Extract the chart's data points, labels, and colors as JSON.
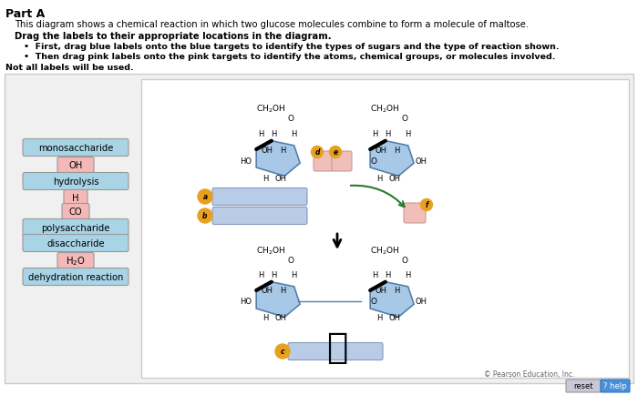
{
  "title_part": "Part A",
  "description": "This diagram shows a chemical reaction in which two glucose molecules combine to form a molecule of maltose.",
  "instruction_bold": "Drag the labels to their appropriate locations in the diagram.",
  "bullet1": "First, drag blue labels onto the blue targets to identify the types of sugars and the type of reaction shown.",
  "bullet2": "Then drag pink labels onto the pink targets to identify the atoms, chemical groups, or molecules involved.",
  "not_all": "Not all labels will be used.",
  "blue_labels": [
    "monosaccharide",
    "hydrolysis",
    "polysaccharide",
    "disaccharide",
    "dehydration reaction"
  ],
  "pink_labels": [
    "OH",
    "H",
    "CO",
    "H₂O"
  ],
  "label_blue_color": "#a8d4e6",
  "label_pink_color": "#f5b8b8",
  "target_blue_color": "#b8cce8",
  "target_pink_color": "#f0c0b8",
  "circle_color": "#e8a020",
  "arrow_color": "#2a7a2a",
  "hex_face": "#a8c8e8",
  "hex_edge": "#5580aa",
  "bg_outer": "#f2f2f2",
  "bg_inner": "#ffffff",
  "copyright": "© Pearson Education, Inc.",
  "reset_color": "#c8c8d8",
  "help_color": "#4a90d9"
}
